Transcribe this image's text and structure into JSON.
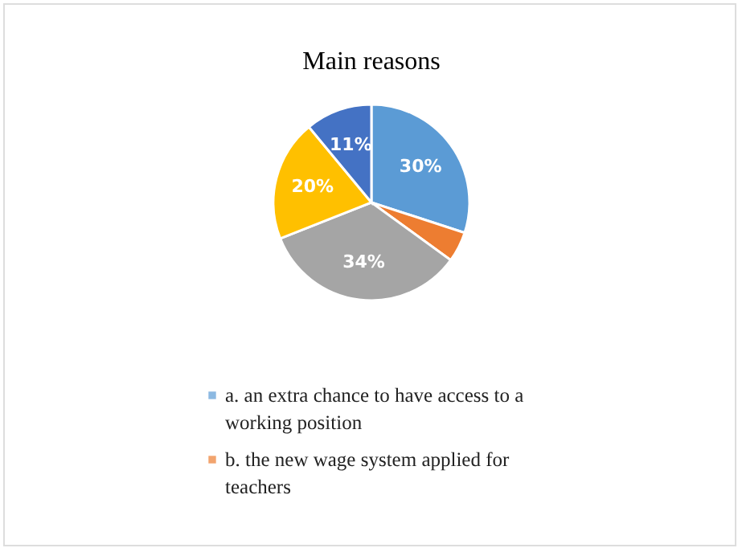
{
  "chart_data": {
    "type": "pie",
    "title": "Main reasons",
    "categories": [
      "a. an extra chance to have access to a working position",
      "b. the new wage system applied for teachers",
      null,
      null,
      null
    ],
    "values": [
      30,
      5,
      34,
      20,
      11
    ],
    "colors": [
      "#5b9bd5",
      "#ed7d31",
      "#a5a5a5",
      "#ffc000",
      "#4472c4"
    ],
    "value_labels": [
      "30%",
      null,
      "34%",
      "20%",
      "11%"
    ],
    "legend": "bottom"
  }
}
